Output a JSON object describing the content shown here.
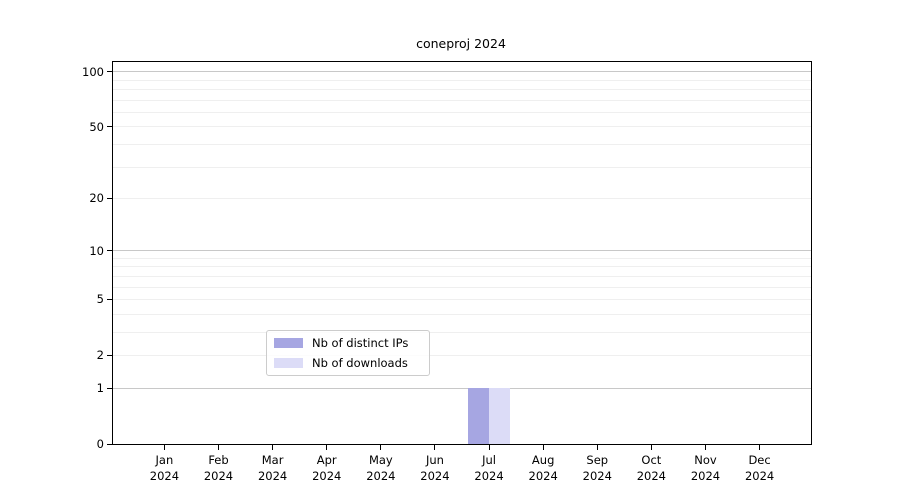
{
  "title": "coneproj 2024",
  "chart_data": {
    "type": "bar",
    "title": "coneproj 2024",
    "categories": [
      "Jan 2024",
      "Feb 2024",
      "Mar 2024",
      "Apr 2024",
      "May 2024",
      "Jun 2024",
      "Jul 2024",
      "Aug 2024",
      "Sep 2024",
      "Oct 2024",
      "Nov 2024",
      "Dec 2024"
    ],
    "series": [
      {
        "name": "Nb of distinct IPs",
        "color": "#a6a6e2",
        "values": [
          0,
          0,
          0,
          0,
          0,
          0,
          1,
          0,
          0,
          0,
          0,
          0
        ]
      },
      {
        "name": "Nb of downloads",
        "color": "#dcdcf7",
        "values": [
          0,
          0,
          0,
          0,
          0,
          0,
          1,
          0,
          0,
          0,
          0,
          0
        ]
      }
    ],
    "xlabel": "",
    "ylabel": "",
    "yscale": "log1p",
    "ylim": [
      0,
      113
    ],
    "y_ticks": [
      0,
      1,
      2,
      5,
      10,
      20,
      50,
      100
    ],
    "y_major_gridlines": [
      1,
      10,
      100
    ],
    "y_minor_gridlines": [
      2,
      3,
      4,
      5,
      6,
      7,
      8,
      9,
      20,
      30,
      40,
      50,
      60,
      70,
      80,
      90
    ],
    "grid": true,
    "legend_position": "lower center"
  },
  "colors": {
    "background": "#ffffff",
    "axis": "#000000",
    "major_gridline": "#c8c8c8",
    "minor_gridline": "#efefef",
    "legend_border": "#cccccc"
  }
}
